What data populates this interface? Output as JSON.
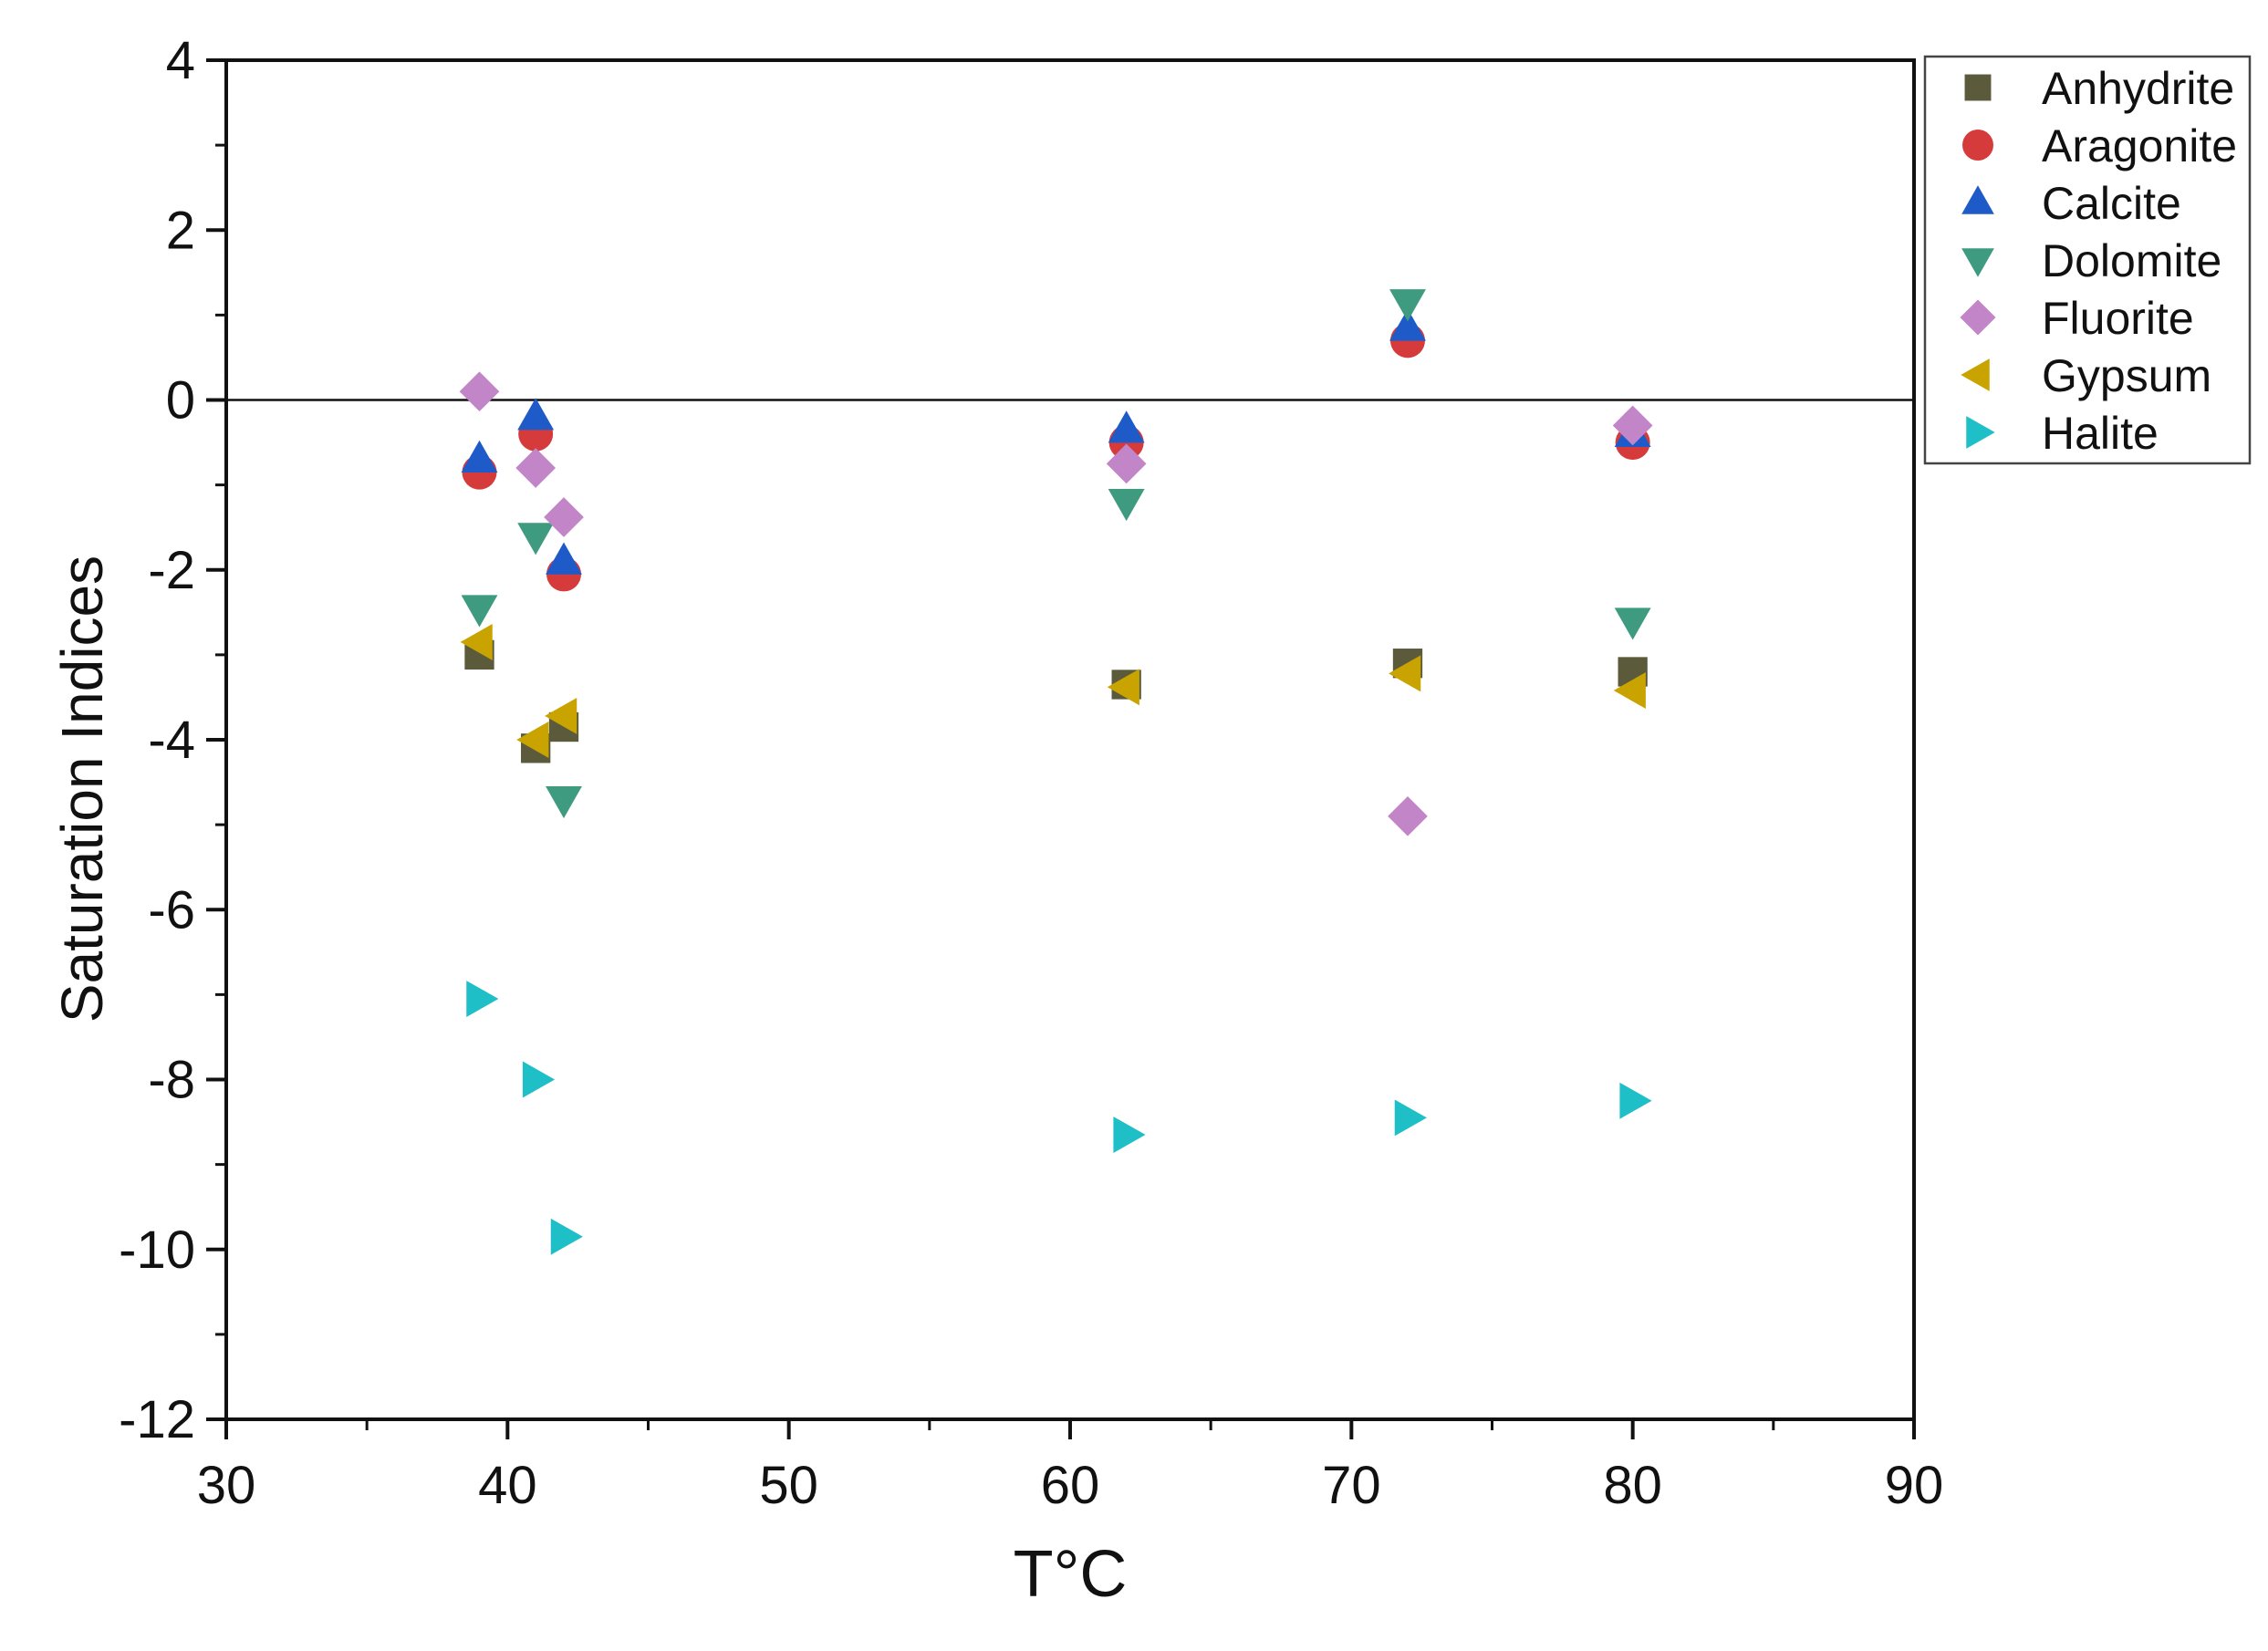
{
  "chart_data": {
    "type": "scatter",
    "title": "",
    "xlabel": "T°C",
    "ylabel": "Saturation Indices",
    "xlim": [
      30,
      90
    ],
    "ylim": [
      -12,
      4
    ],
    "xticks": [
      30,
      40,
      50,
      60,
      70,
      80,
      90
    ],
    "yticks": [
      -12,
      -10,
      -8,
      -6,
      -4,
      -2,
      0,
      2,
      4
    ],
    "reference_line_y": 0,
    "grid": false,
    "legend_position": "top-right",
    "series": [
      {
        "name": "Anhydrite",
        "marker": "square",
        "color": "#5b5b3c",
        "points": [
          [
            39,
            -3.0
          ],
          [
            41,
            -4.1
          ],
          [
            42,
            -3.85
          ],
          [
            62,
            -3.35
          ],
          [
            72,
            -3.1
          ],
          [
            80,
            -3.2
          ]
        ]
      },
      {
        "name": "Aragonite",
        "marker": "circle",
        "color": "#d63b3b",
        "points": [
          [
            39,
            -0.85
          ],
          [
            41,
            -0.4
          ],
          [
            42,
            -2.05
          ],
          [
            62,
            -0.5
          ],
          [
            72,
            0.7
          ],
          [
            80,
            -0.5
          ]
        ]
      },
      {
        "name": "Calcite",
        "marker": "triangle-up",
        "color": "#1f5bc8",
        "points": [
          [
            39,
            -0.7
          ],
          [
            41,
            -0.2
          ],
          [
            42,
            -1.9
          ],
          [
            62,
            -0.35
          ],
          [
            72,
            0.85
          ],
          [
            80,
            -0.4
          ]
        ]
      },
      {
        "name": "Dolomite",
        "marker": "triangle-down",
        "color": "#3f9b80",
        "points": [
          [
            39,
            -2.45
          ],
          [
            41,
            -1.6
          ],
          [
            42,
            -4.7
          ],
          [
            62,
            -1.2
          ],
          [
            72,
            1.15
          ],
          [
            80,
            -2.6
          ]
        ]
      },
      {
        "name": "Fluorite",
        "marker": "diamond",
        "color": "#c285c8",
        "points": [
          [
            39,
            0.1
          ],
          [
            41,
            -0.8
          ],
          [
            42,
            -1.38
          ],
          [
            62,
            -0.75
          ],
          [
            72,
            -4.9
          ],
          [
            80,
            -0.3
          ]
        ]
      },
      {
        "name": "Gypsum",
        "marker": "triangle-left",
        "color": "#c9a400",
        "points": [
          [
            39,
            -2.85
          ],
          [
            41,
            -4.0
          ],
          [
            42,
            -3.72
          ],
          [
            62,
            -3.38
          ],
          [
            72,
            -3.22
          ],
          [
            80,
            -3.42
          ]
        ]
      },
      {
        "name": "Halite",
        "marker": "triangle-right",
        "color": "#1fbfc8",
        "points": [
          [
            39,
            -7.05
          ],
          [
            41,
            -8.0
          ],
          [
            42,
            -9.85
          ],
          [
            62,
            -8.65
          ],
          [
            72,
            -8.45
          ],
          [
            80,
            -8.25
          ]
        ]
      }
    ]
  }
}
